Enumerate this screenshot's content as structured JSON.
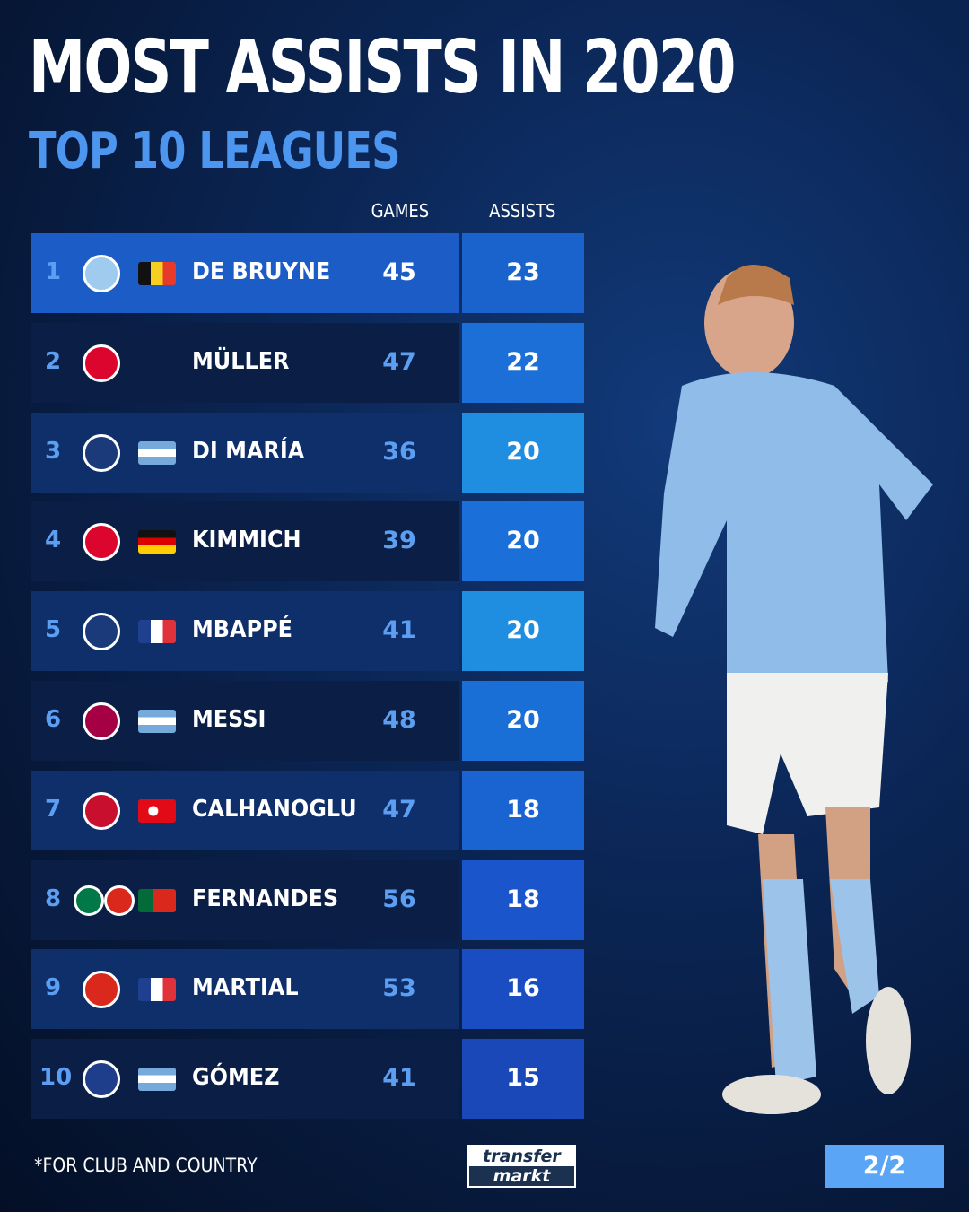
{
  "title": "MOST ASSISTS IN 2020",
  "subtitle": "TOP 10 LEAGUES",
  "footnote": "*FOR CLUB AND COUNTRY",
  "logo_text": [
    "transfer",
    "markt"
  ],
  "page_indicator": "2/2",
  "colors": {
    "background": "#0b2656",
    "accent": "#4d96f0",
    "highlight_row": "#1a5bc4",
    "page_badge": "#5aa5f5"
  },
  "chart_data": {
    "type": "table",
    "columns": [
      "GAMES",
      "ASSISTS"
    ],
    "rows": [
      {
        "rank": "1",
        "club": "manchester-city",
        "flag": "belgium",
        "name": "DE BRUYNE",
        "games": "45",
        "assists": "23"
      },
      {
        "rank": "2",
        "club": "bayern-munich",
        "flag": "",
        "name": "MÜLLER",
        "games": "47",
        "assists": "22"
      },
      {
        "rank": "3",
        "club": "paris-saint-germain",
        "flag": "argentina",
        "name": "DI MARÍA",
        "games": "36",
        "assists": "20"
      },
      {
        "rank": "4",
        "club": "bayern-munich",
        "flag": "germany",
        "name": "KIMMICH",
        "games": "39",
        "assists": "20"
      },
      {
        "rank": "5",
        "club": "paris-saint-germain",
        "flag": "france",
        "name": "MBAPPÉ",
        "games": "41",
        "assists": "20"
      },
      {
        "rank": "6",
        "club": "fc-barcelona",
        "flag": "argentina",
        "name": "MESSI",
        "games": "48",
        "assists": "20"
      },
      {
        "rank": "7",
        "club": "ac-milan",
        "flag": "turkey",
        "name": "CALHANOGLU",
        "games": "47",
        "assists": "18"
      },
      {
        "rank": "8",
        "club": "sporting-cp,manchester-united",
        "flag": "portugal",
        "name": "FERNANDES",
        "games": "56",
        "assists": "18"
      },
      {
        "rank": "9",
        "club": "manchester-united",
        "flag": "france",
        "name": "MARTIAL",
        "games": "53",
        "assists": "16"
      },
      {
        "rank": "10",
        "club": "atalanta",
        "flag": "argentina",
        "name": "GÓMEZ",
        "games": "41",
        "assists": "15"
      }
    ]
  }
}
